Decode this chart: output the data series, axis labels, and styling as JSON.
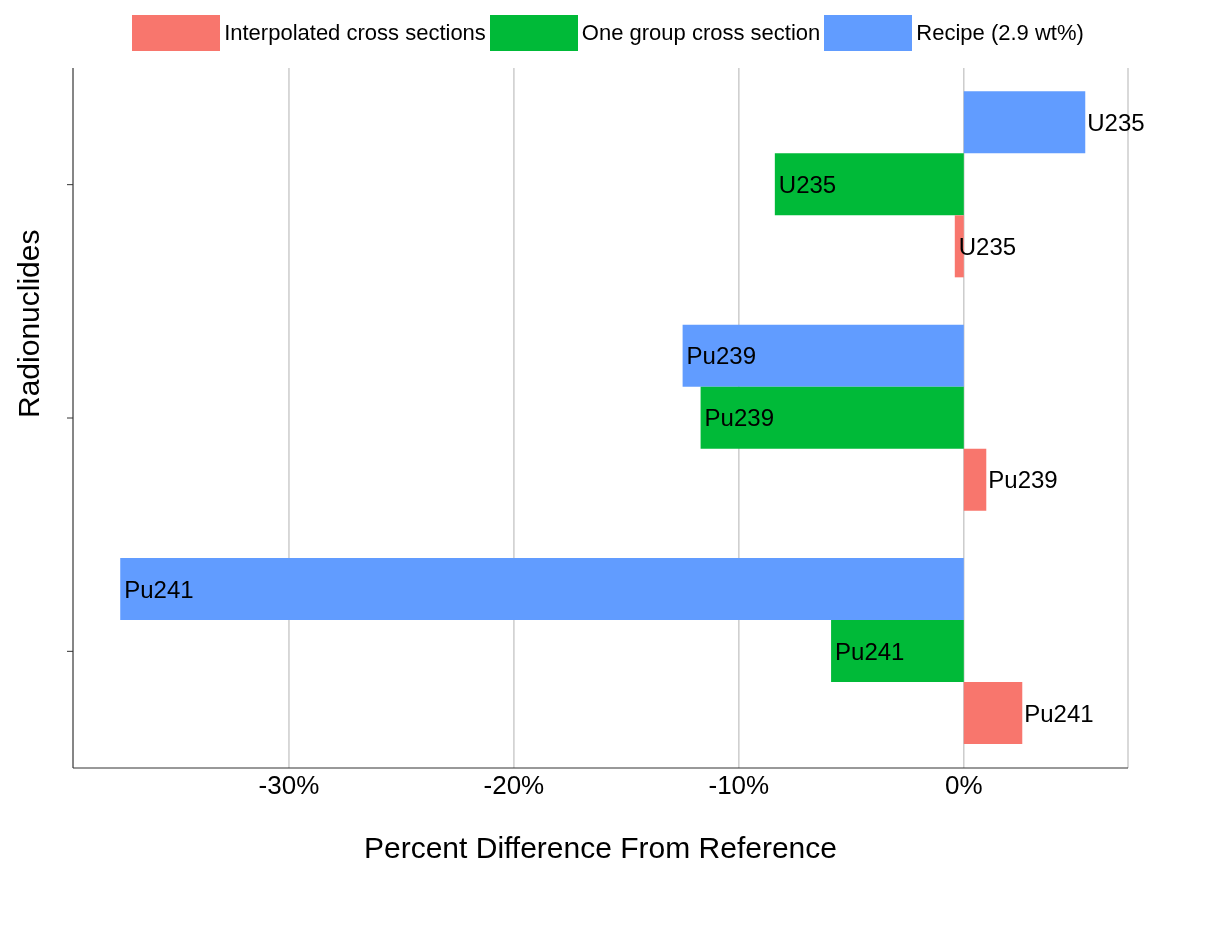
{
  "chart_data": {
    "type": "bar",
    "orientation": "horizontal",
    "categories": [
      null,
      null,
      null
    ],
    "series": [
      {
        "name": "Interpolated cross sections",
        "color": "#f8766d",
        "values": [
          -0.4,
          1.0,
          2.6
        ],
        "value_labels": [
          "U235",
          "Pu239",
          "Pu241"
        ]
      },
      {
        "name": "One group cross section",
        "color": "#00ba38",
        "values": [
          -8.4,
          -11.7,
          -5.9
        ],
        "value_labels": [
          "U235",
          "Pu239",
          "Pu241"
        ]
      },
      {
        "name": "Recipe (2.9 wt%)",
        "color": "#619cff",
        "values": [
          5.4,
          -12.5,
          -37.5
        ],
        "value_labels": [
          "U235",
          "Pu239",
          "Pu241"
        ]
      }
    ],
    "xlim": [
      -39.6,
      7.3
    ],
    "xticks": [
      {
        "value": -30,
        "label": "-30%"
      },
      {
        "value": -20,
        "label": "-20%"
      },
      {
        "value": -10,
        "label": "-10%"
      },
      {
        "value": 0,
        "label": "0%"
      }
    ],
    "xlabel": "Percent Difference From Reference",
    "ylabel": "Radionuclides",
    "grid": "x",
    "legend": "top",
    "tick_labels": "x"
  }
}
